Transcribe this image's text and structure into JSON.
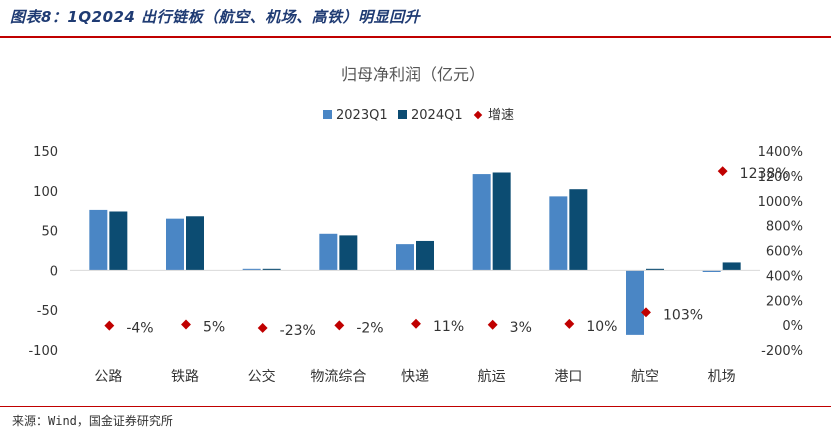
{
  "figure_title": "图表8：1Q2024 出行链板（航空、机场、高铁）明显回升",
  "source": "来源：Wind，国金证券研究所",
  "colors": {
    "s2023": "#4a86c5",
    "s2024": "#0c4c72",
    "growth": "#c00000",
    "rule": "#c00000"
  },
  "chart_data": {
    "type": "bar",
    "title": "归母净利润（亿元）",
    "categories": [
      "公路",
      "铁路",
      "公交",
      "物流综合",
      "快递",
      "航运",
      "港口",
      "航空",
      "机场"
    ],
    "series": [
      {
        "name": "2023Q1",
        "values": [
          76,
          65,
          2,
          46,
          33,
          121,
          93,
          -81,
          -2
        ]
      },
      {
        "name": "2024Q1",
        "values": [
          74,
          68,
          2,
          44,
          37,
          123,
          102,
          2,
          10
        ]
      }
    ],
    "growth": {
      "name": "增速",
      "values": [
        -4,
        5,
        -23,
        -2,
        11,
        3,
        10,
        103,
        1238
      ],
      "labels": [
        "-4%",
        "5%",
        "-23%",
        "-2%",
        "11%",
        "3%",
        "10%",
        "103%",
        "1238%"
      ]
    },
    "ylim": [
      -100,
      150
    ],
    "y_ticks": [
      "150",
      "100",
      "50",
      "0",
      "-50",
      "-100"
    ],
    "y2lim": [
      -200,
      1400
    ],
    "y2_ticks": [
      "1400%",
      "1200%",
      "1000%",
      "800%",
      "600%",
      "400%",
      "200%",
      "0%",
      "-200%"
    ],
    "legend_position": "top-center",
    "grid": false
  }
}
